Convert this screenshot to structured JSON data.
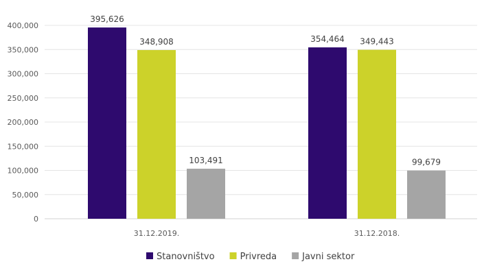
{
  "chart_data": {
    "type": "bar",
    "title": "",
    "xlabel": "",
    "ylabel": "",
    "categories": [
      "31.12.2019.",
      "31.12.2018."
    ],
    "series": [
      {
        "name": "Stanovništvo",
        "color": "#2E0A6E",
        "values": [
          395626,
          354464
        ],
        "labels": [
          "395,626",
          "354,464"
        ]
      },
      {
        "name": "Privreda",
        "color": "#CCD22A",
        "values": [
          348908,
          349443
        ],
        "labels": [
          "348,908",
          "349,443"
        ]
      },
      {
        "name": "Javni sektor",
        "color": "#A5A5A5",
        "values": [
          103491,
          99679
        ],
        "labels": [
          "103,491",
          "99,679"
        ]
      }
    ],
    "ylim": [
      0,
      400000
    ],
    "yticks": [
      "0",
      "50,000",
      "100,000",
      "150,000",
      "200,000",
      "250,000",
      "300,000",
      "350,000",
      "400,000"
    ],
    "grid": true,
    "legend": "bottom"
  }
}
